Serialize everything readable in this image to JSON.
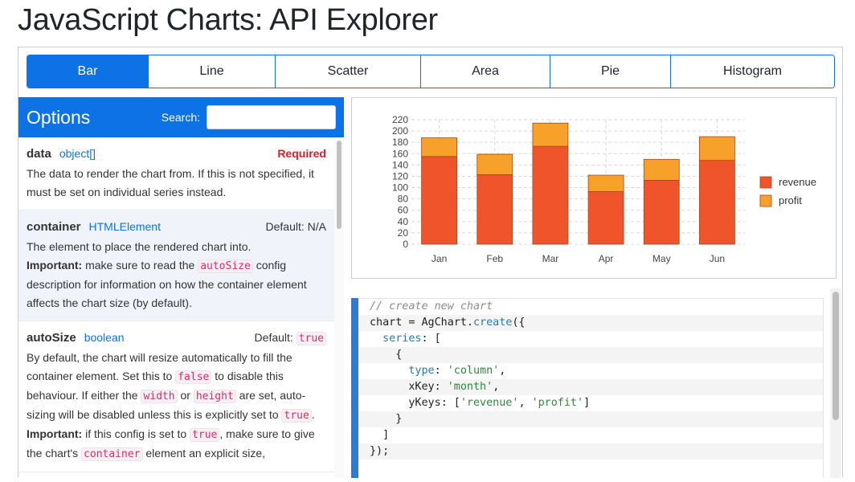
{
  "page": {
    "title": "JavaScript Charts: API Explorer"
  },
  "tabs": [
    {
      "label": "Bar",
      "active": true
    },
    {
      "label": "Line"
    },
    {
      "label": "Scatter"
    },
    {
      "label": "Area"
    },
    {
      "label": "Pie"
    },
    {
      "label": "Histogram"
    }
  ],
  "options_panel": {
    "title": "Options",
    "search_label": "Search:",
    "search_value": "",
    "items": [
      {
        "name": "data",
        "type": "object[]",
        "badge": "Required",
        "desc": "The data to render the chart from. If this is not specified, it must be set on individual series instead."
      },
      {
        "name": "container",
        "type": "HTMLElement",
        "default_label": "Default: N/A",
        "desc_1": "The element to place the rendered chart into.",
        "important_label": "Important:",
        "desc_2": " make sure to read the ",
        "code_1": "autoSize",
        "desc_3": " config description for information on how the container element affects the chart size (by default)."
      },
      {
        "name": "autoSize",
        "type": "boolean",
        "default_label": "Default: ",
        "default_value": "true",
        "p1": "By default, the chart will resize automatically to fill the container element. Set this to ",
        "c1": "false",
        "p2": " to disable this behaviour. If either the ",
        "c2": "width",
        "p3": " or ",
        "c3": "height",
        "p4": " are set, auto-sizing will be disabled unless this is explicitly set to ",
        "c4": "true",
        "p5": ".",
        "important_label": "Important:",
        "p6": " if this config is set to ",
        "c5": "true",
        "p7": ", make sure to give the chart's ",
        "c6": "container",
        "p8": " element an explicit size,"
      }
    ]
  },
  "chart_data": {
    "type": "bar",
    "stacked": true,
    "categories": [
      "Jan",
      "Feb",
      "Mar",
      "Apr",
      "May",
      "Jun"
    ],
    "series": [
      {
        "name": "revenue",
        "values": [
          155,
          123,
          173,
          93,
          113,
          148
        ],
        "color": "#f0542a"
      },
      {
        "name": "profit",
        "values": [
          33,
          36,
          41,
          29,
          37,
          42
        ],
        "color": "#f8a12a"
      }
    ],
    "ylim": [
      0,
      220
    ],
    "yticks": [
      "0",
      "20",
      "40",
      "60",
      "80",
      "100",
      "120",
      "140",
      "160",
      "180",
      "200",
      "220"
    ],
    "grid": true,
    "legend_position": "right"
  },
  "code": {
    "lines": [
      [
        {
          "t": "// create new chart",
          "c": "comment"
        }
      ],
      [
        {
          "t": "chart = AgChart.",
          "c": ""
        },
        {
          "t": "create",
          "c": "fn"
        },
        {
          "t": "({",
          "c": ""
        }
      ],
      [
        {
          "t": "  series",
          "c": "prop"
        },
        {
          "t": ": [",
          "c": ""
        }
      ],
      [
        {
          "t": "    {",
          "c": ""
        }
      ],
      [
        {
          "t": "      type",
          "c": "prop"
        },
        {
          "t": ": ",
          "c": ""
        },
        {
          "t": "'column'",
          "c": "str"
        },
        {
          "t": ",",
          "c": ""
        }
      ],
      [
        {
          "t": "      xKey",
          "c": ""
        },
        {
          "t": ": ",
          "c": ""
        },
        {
          "t": "'month'",
          "c": "str"
        },
        {
          "t": ",",
          "c": ""
        }
      ],
      [
        {
          "t": "      yKeys",
          "c": ""
        },
        {
          "t": ": [",
          "c": ""
        },
        {
          "t": "'revenue'",
          "c": "str"
        },
        {
          "t": ", ",
          "c": ""
        },
        {
          "t": "'profit'",
          "c": "str"
        },
        {
          "t": "]",
          "c": ""
        }
      ],
      [
        {
          "t": "    }",
          "c": ""
        }
      ],
      [
        {
          "t": "  ]",
          "c": ""
        }
      ],
      [
        {
          "t": "});",
          "c": ""
        }
      ]
    ]
  }
}
